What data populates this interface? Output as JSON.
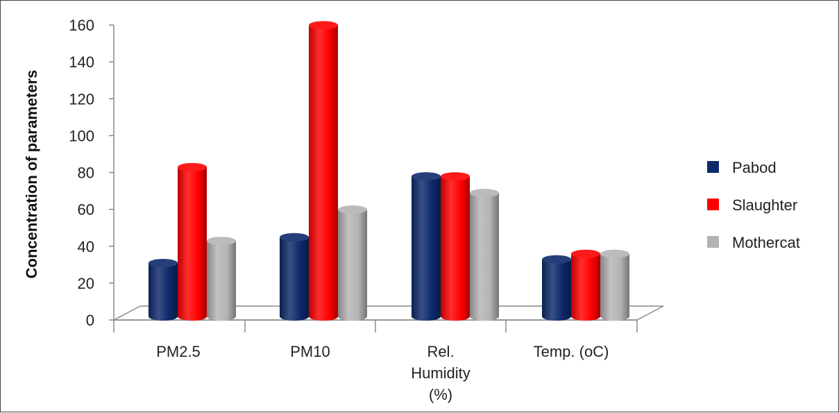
{
  "chart_data": {
    "type": "bar",
    "style": "3d-cylinder",
    "categories": [
      [
        "PM2.5"
      ],
      [
        "PM10"
      ],
      [
        "Rel.",
        "Humidity",
        "(%)"
      ],
      [
        "Temp. (oC)"
      ]
    ],
    "series": [
      {
        "name": "Pabod",
        "values": [
          29,
          43,
          76,
          31
        ],
        "color": "#0d2a6b"
      },
      {
        "name": "Slaughter",
        "values": [
          81,
          158,
          76,
          34
        ],
        "color": "#ff0000"
      },
      {
        "name": "Mothercat",
        "values": [
          41,
          58,
          67,
          34
        ],
        "color": "#b3b3b3"
      }
    ],
    "title": "",
    "xlabel": "",
    "ylabel": "Concentration of parameters",
    "ylim": [
      0,
      160
    ],
    "yticks": [
      0,
      20,
      40,
      60,
      80,
      100,
      120,
      140,
      160
    ],
    "grid": false,
    "legend_position": "right"
  }
}
